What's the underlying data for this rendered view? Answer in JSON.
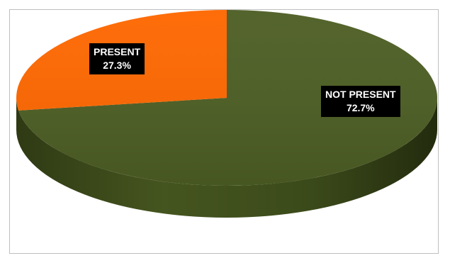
{
  "chart_data": {
    "type": "pie",
    "style": "3d",
    "title": "",
    "slices": [
      {
        "label": "NOT PRESENT",
        "value": 72.7,
        "value_label": "72.7%",
        "color": "#4d5e24"
      },
      {
        "label": "PRESENT",
        "value": 27.3,
        "value_label": "27.3%",
        "color": "#fe6700"
      }
    ],
    "legend": "none",
    "data_labels": "category and percentage"
  }
}
